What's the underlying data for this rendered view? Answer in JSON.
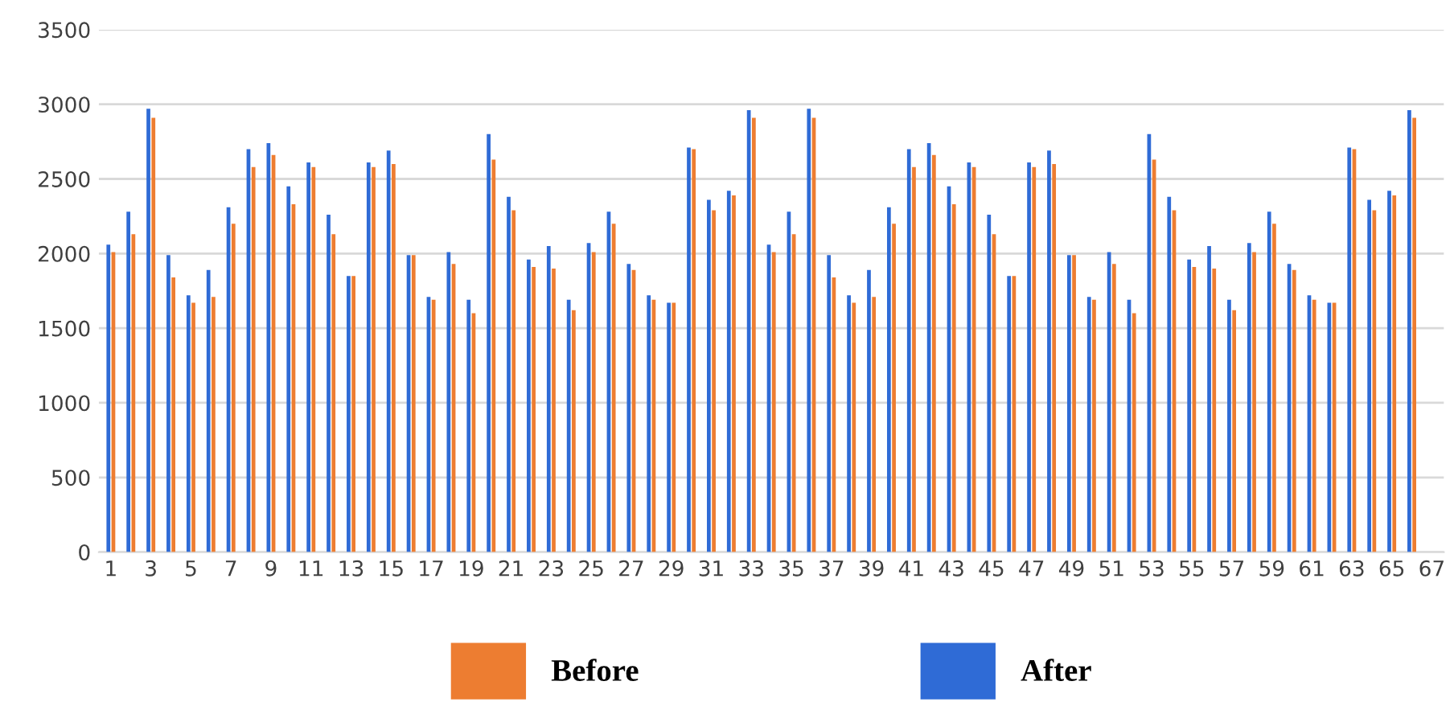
{
  "chart_data": {
    "type": "bar",
    "categories": [
      "1",
      null,
      "3",
      null,
      "5",
      null,
      "7",
      null,
      "9",
      null,
      "11",
      null,
      "13",
      null,
      "15",
      null,
      "17",
      null,
      "19",
      null,
      "21",
      null,
      "23",
      null,
      "25",
      null,
      "27",
      null,
      "29",
      null,
      "31",
      null,
      "33",
      null,
      "35",
      null,
      "37",
      null,
      "39",
      null,
      "41",
      null,
      "43",
      null,
      "45",
      null,
      "47",
      null,
      "49",
      null,
      "51",
      null,
      "53",
      null,
      "55",
      null,
      "57",
      null,
      "59",
      null,
      "61",
      null,
      "63",
      null,
      "65",
      null,
      "67"
    ],
    "series": [
      {
        "name": "After",
        "color": "#2f6bd6",
        "values": [
          2060,
          2280,
          2970,
          1990,
          1720,
          1890,
          2310,
          2700,
          2740,
          2450,
          2610,
          2260,
          1850,
          2610,
          2690,
          1990,
          1710,
          2010,
          1690,
          2800,
          2380,
          1960,
          2050,
          1690,
          2070,
          2280,
          1930,
          1720,
          1670,
          2710,
          2360,
          2420,
          2960,
          2060,
          2280,
          2970,
          1990,
          1720,
          1890,
          2310,
          2700,
          2740,
          2450,
          2610,
          2260,
          1850,
          2610,
          2690,
          1990,
          1710,
          2010,
          1690,
          2800,
          2380,
          1960,
          2050,
          1690,
          2070,
          2280,
          1930,
          1720,
          1670,
          2710,
          2360,
          2420,
          2960,
          null
        ]
      },
      {
        "name": "Before",
        "color": "#ed7d31",
        "values": [
          2010,
          2130,
          2910,
          1840,
          1670,
          1710,
          2200,
          2580,
          2660,
          2330,
          2580,
          2130,
          1850,
          2580,
          2600,
          1990,
          1690,
          1930,
          1600,
          2630,
          2290,
          1910,
          1900,
          1620,
          2010,
          2200,
          1890,
          1690,
          1670,
          2700,
          2290,
          2390,
          2910,
          2010,
          2130,
          2910,
          1840,
          1670,
          1710,
          2200,
          2580,
          2660,
          2330,
          2580,
          2130,
          1850,
          2580,
          2600,
          1990,
          1690,
          1930,
          1600,
          2630,
          2290,
          1910,
          1900,
          1620,
          2010,
          2200,
          1890,
          1690,
          1670,
          2700,
          2290,
          2390,
          2910,
          null
        ]
      }
    ],
    "ylim": [
      0,
      3500
    ],
    "yticks": [
      0,
      500,
      1000,
      1500,
      2000,
      2500,
      3000,
      3500
    ],
    "grid": "y",
    "legend": "bottom"
  }
}
